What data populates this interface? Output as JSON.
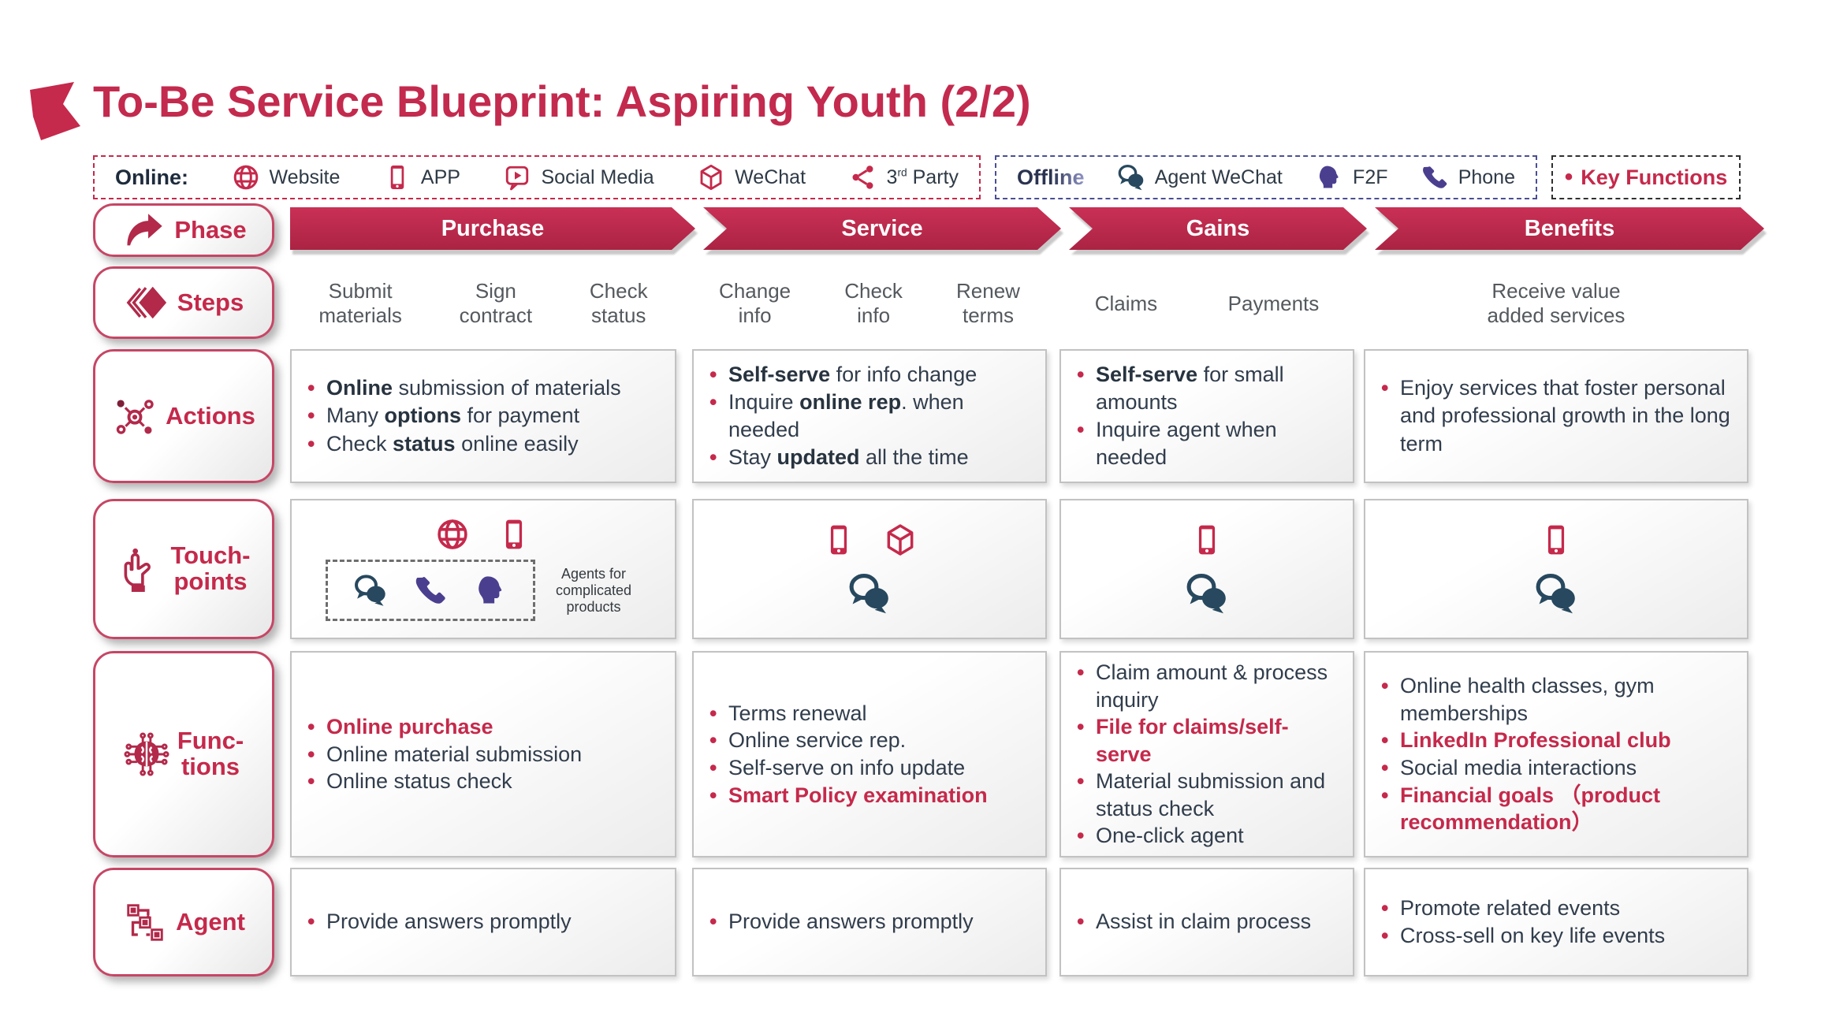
{
  "page": {
    "title": "To-Be Service Blueprint: Aspiring Youth (2/2)"
  },
  "colors": {
    "accent_crimson": "#C5294B",
    "text_dark": "#313D4C",
    "steps_gray": "#54595E",
    "teal_icon": "#27485E",
    "purple_icon": "#4A3F8F",
    "online_border": "#C5294B",
    "offline_border": "#4A4F93",
    "key_border": "#2F2F2F",
    "box_border": "#C2C2C2"
  },
  "legend": {
    "online": {
      "label": "Online:",
      "items": [
        {
          "icon": "globe-icon",
          "label": "Website"
        },
        {
          "icon": "mobile-icon",
          "label": "APP"
        },
        {
          "icon": "social-media-icon",
          "label": "Social Media"
        },
        {
          "icon": "cube-icon",
          "label": "WeChat"
        },
        {
          "icon": "share-icon",
          "label_pre": "3",
          "sup": "rd",
          "label_post": " Party"
        }
      ]
    },
    "offline": {
      "label": "Offline",
      "items": [
        {
          "icon": "agent-wechat-icon",
          "label": "Agent WeChat"
        },
        {
          "icon": "head-icon",
          "label": "F2F"
        },
        {
          "icon": "handset-icon",
          "label": "Phone"
        }
      ]
    },
    "key_functions": {
      "bullet": "•",
      "label": "Key Functions"
    }
  },
  "phase": {
    "label": "Phase",
    "icons": [
      "phase-arrow-icon"
    ],
    "items": [
      "Purchase",
      "Service",
      "Gains",
      "Benefits"
    ]
  },
  "steps": {
    "label": "Steps",
    "icons": [
      "steps-diamond-icon"
    ],
    "groups": [
      [
        "Submit\nmaterials",
        "Sign\ncontract",
        "Check\nstatus"
      ],
      [
        "Change\ninfo",
        "Check\ninfo",
        "Renew\nterms"
      ],
      [
        "Claims",
        "Payments"
      ],
      [
        "Receive value\nadded services"
      ]
    ]
  },
  "actions": {
    "label": "Actions",
    "icons": [
      "actions-network-icon"
    ],
    "cells": [
      [
        {
          "parts": [
            {
              "t": "Online",
              "b": true
            },
            {
              "t": " submission of materials"
            }
          ]
        },
        {
          "parts": [
            {
              "t": "Many "
            },
            {
              "t": "options",
              "b": true
            },
            {
              "t": " for payment"
            }
          ]
        },
        {
          "parts": [
            {
              "t": "Check "
            },
            {
              "t": "status",
              "b": true
            },
            {
              "t": " online easily"
            }
          ]
        }
      ],
      [
        {
          "parts": [
            {
              "t": "Self-serve",
              "b": true
            },
            {
              "t": " for info change"
            }
          ]
        },
        {
          "parts": [
            {
              "t": "Inquire "
            },
            {
              "t": "online rep",
              "b": true
            },
            {
              "t": ". when needed"
            }
          ]
        },
        {
          "parts": [
            {
              "t": "Stay "
            },
            {
              "t": "updated",
              "b": true
            },
            {
              "t": " all the time"
            }
          ]
        }
      ],
      [
        {
          "parts": [
            {
              "t": "Self-serve",
              "b": true
            },
            {
              "t": " for small amounts"
            }
          ]
        },
        {
          "parts": [
            {
              "t": "Inquire agent when needed"
            }
          ]
        }
      ],
      [
        {
          "parts": [
            {
              "t": "Enjoy services that foster personal and professional growth in the long term"
            }
          ]
        }
      ]
    ]
  },
  "touchpoints": {
    "label": "Touch-\npoints",
    "icons": [
      "touch-hand-icon"
    ],
    "cells": [
      {
        "top": [
          "globe-icon",
          "mobile-icon"
        ],
        "agents_box": {
          "icons": [
            "agent-wechat-icon",
            "handset-icon",
            "head-icon"
          ],
          "caption": "Agents for\ncomplicated\nproducts"
        }
      },
      {
        "top": [
          "mobile-icon",
          "cube-icon"
        ],
        "bottom": [
          "agent-wechat-icon"
        ]
      },
      {
        "top": [
          "mobile-icon"
        ],
        "bottom": [
          "agent-wechat-icon"
        ]
      },
      {
        "top": [
          "mobile-icon"
        ],
        "bottom": [
          "agent-wechat-icon"
        ]
      }
    ]
  },
  "functions": {
    "label": "Func-\ntions",
    "icons": [
      "functions-brain-icon"
    ],
    "cells": [
      [
        {
          "red": true,
          "parts": [
            {
              "t": "Online purchase",
              "b": true
            }
          ]
        },
        {
          "parts": [
            {
              "t": "Online material submission"
            }
          ]
        },
        {
          "parts": [
            {
              "t": "Online status check"
            }
          ]
        }
      ],
      [
        {
          "parts": [
            {
              "t": "Terms renewal"
            }
          ]
        },
        {
          "parts": [
            {
              "t": "Online service rep."
            }
          ]
        },
        {
          "parts": [
            {
              "t": "Self-serve on info update"
            }
          ]
        },
        {
          "red": true,
          "parts": [
            {
              "t": "Smart Policy examination",
              "b": true
            }
          ]
        }
      ],
      [
        {
          "parts": [
            {
              "t": "Claim amount & process inquiry"
            }
          ]
        },
        {
          "red": true,
          "parts": [
            {
              "t": "File for claims/self-serve",
              "b": true
            }
          ]
        },
        {
          "parts": [
            {
              "t": "Material submission and status check"
            }
          ]
        },
        {
          "parts": [
            {
              "t": "One-click agent"
            }
          ]
        }
      ],
      [
        {
          "parts": [
            {
              "t": "Online health classes, gym memberships"
            }
          ]
        },
        {
          "red": true,
          "parts": [
            {
              "t": "LinkedIn Professional club",
              "b": true
            }
          ]
        },
        {
          "parts": [
            {
              "t": "Social media interactions"
            }
          ]
        },
        {
          "red": true,
          "parts": [
            {
              "t": "Financial goals （product recommendation）",
              "b": true
            }
          ]
        }
      ]
    ]
  },
  "agent": {
    "label": "Agent",
    "icons": [
      "agent-flow-icon"
    ],
    "cells": [
      [
        {
          "parts": [
            {
              "t": "Provide answers promptly"
            }
          ]
        }
      ],
      [
        {
          "parts": [
            {
              "t": "Provide answers promptly"
            }
          ]
        }
      ],
      [
        {
          "parts": [
            {
              "t": "Assist in claim process"
            }
          ]
        }
      ],
      [
        {
          "parts": [
            {
              "t": "Promote related events"
            }
          ]
        },
        {
          "parts": [
            {
              "t": "Cross-sell on key life events"
            }
          ]
        }
      ]
    ]
  }
}
